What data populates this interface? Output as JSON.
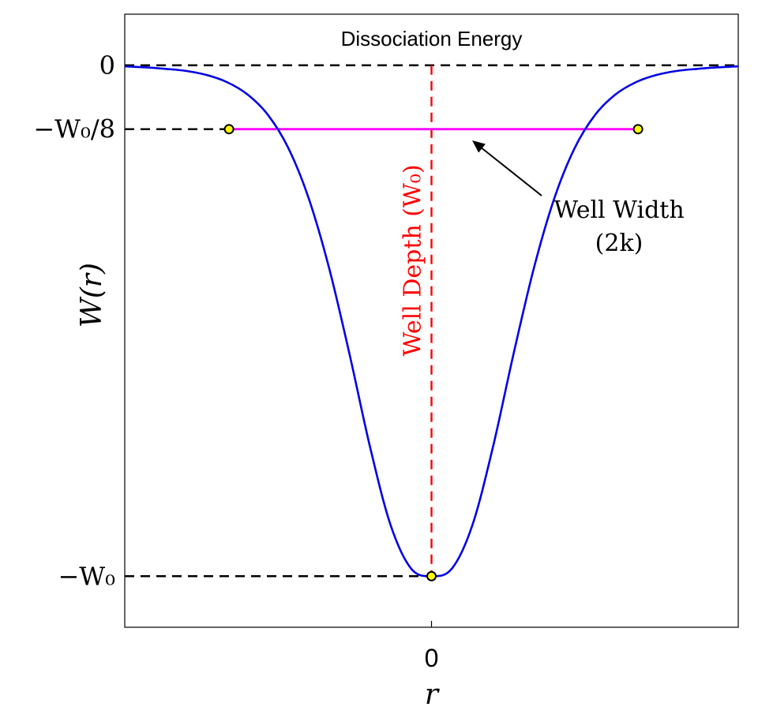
{
  "chart_data": {
    "type": "line",
    "title": "",
    "xlabel": "r",
    "ylabel": "W(r)",
    "xlim": [
      -3,
      3
    ],
    "ylim": [
      -1.1,
      0.1
    ],
    "x_ticks": [
      {
        "value": 0,
        "label": "0"
      }
    ],
    "y_ticks": [
      {
        "value": 0,
        "label": "0"
      },
      {
        "value": -0.125,
        "label": "−W₀/8"
      },
      {
        "value": -1,
        "label": "−W₀"
      }
    ],
    "series": [
      {
        "color": "#0000e6",
        "x": [
          -3.0,
          -2.8,
          -2.6,
          -2.4,
          -2.2,
          -2.0,
          -1.8,
          -1.6,
          -1.4,
          -1.2,
          -1.0,
          -0.8,
          -0.6,
          -0.4,
          -0.2,
          0.0,
          0.2,
          0.4,
          0.6,
          0.8,
          1.0,
          1.2,
          1.4,
          1.6,
          1.8,
          2.0,
          2.2,
          2.4,
          2.6,
          2.8,
          3.0
        ],
        "y": [
          -0.002,
          -0.004,
          -0.007,
          -0.011,
          -0.019,
          -0.033,
          -0.057,
          -0.097,
          -0.162,
          -0.261,
          -0.398,
          -0.567,
          -0.748,
          -0.9,
          -0.985,
          -1.0,
          -0.985,
          -0.9,
          -0.748,
          -0.567,
          -0.398,
          -0.261,
          -0.162,
          -0.097,
          -0.057,
          -0.033,
          -0.019,
          -0.011,
          -0.007,
          -0.004,
          -0.002
        ]
      }
    ],
    "reference_lines": [
      {
        "kind": "horizontal",
        "y": 0,
        "color": "#000000",
        "style": "dashed"
      },
      {
        "kind": "horizontal",
        "y": -0.125,
        "color": "#000000",
        "style": "dashed"
      },
      {
        "kind": "horizontal",
        "y": -1,
        "color": "#000000",
        "style": "dashed"
      },
      {
        "kind": "vertical",
        "x": 0,
        "color": "#ff0000",
        "style": "dashed"
      }
    ],
    "width_segment": {
      "x": [
        -1.98,
        2.02
      ],
      "y": -0.125,
      "color": "#ff00ff"
    },
    "markers": [
      {
        "x": -1.98,
        "y": -0.125
      },
      {
        "x": 2.02,
        "y": -0.125
      },
      {
        "x": 0,
        "y": -1
      }
    ],
    "annotations": {
      "dissociation": "Dissociation Energy",
      "well_depth": "Well Depth (W₀)",
      "well_width_line1": "Well Width",
      "well_width_line2": "(2k)"
    },
    "grid": false,
    "legend": "none"
  }
}
